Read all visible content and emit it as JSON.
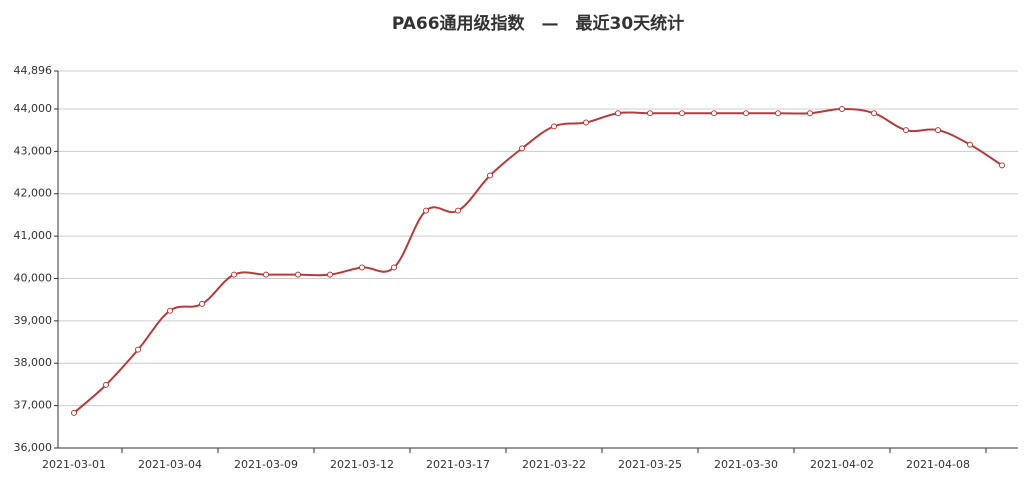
{
  "chart_data": {
    "type": "line",
    "title": "PA66通用级指数　—　最近30天统计",
    "categories": [
      "2021-03-01",
      null,
      null,
      "2021-03-04",
      null,
      null,
      "2021-03-09",
      null,
      null,
      "2021-03-12",
      null,
      null,
      "2021-03-17",
      null,
      null,
      "2021-03-22",
      null,
      null,
      "2021-03-25",
      null,
      null,
      "2021-03-30",
      null,
      null,
      "2021-04-02",
      null,
      null,
      "2021-04-08",
      null,
      null
    ],
    "series": [
      {
        "color": "#b83b3b",
        "values": [
          36830,
          37490,
          38320,
          39240,
          39400,
          40090,
          40090,
          40090,
          40090,
          40260,
          40260,
          41600,
          41600,
          42430,
          43070,
          43590,
          43680,
          43900,
          43900,
          43900,
          43900,
          43900,
          43900,
          43900,
          44000,
          43900,
          43500,
          43500,
          43160,
          42670
        ]
      }
    ],
    "ylim": [
      36000,
      44896
    ],
    "yticks": [
      {
        "value": 36000,
        "label": "36,000"
      },
      {
        "value": 37000,
        "label": "37,000"
      },
      {
        "value": 38000,
        "label": "38,000"
      },
      {
        "value": 39000,
        "label": "39,000"
      },
      {
        "value": 40000,
        "label": "40,000"
      },
      {
        "value": 41000,
        "label": "41,000"
      },
      {
        "value": 42000,
        "label": "42,000"
      },
      {
        "value": 43000,
        "label": "43,000"
      },
      {
        "value": 44000,
        "label": "44,000"
      },
      {
        "value": 44896,
        "label": "44,896"
      }
    ],
    "grid": true
  }
}
